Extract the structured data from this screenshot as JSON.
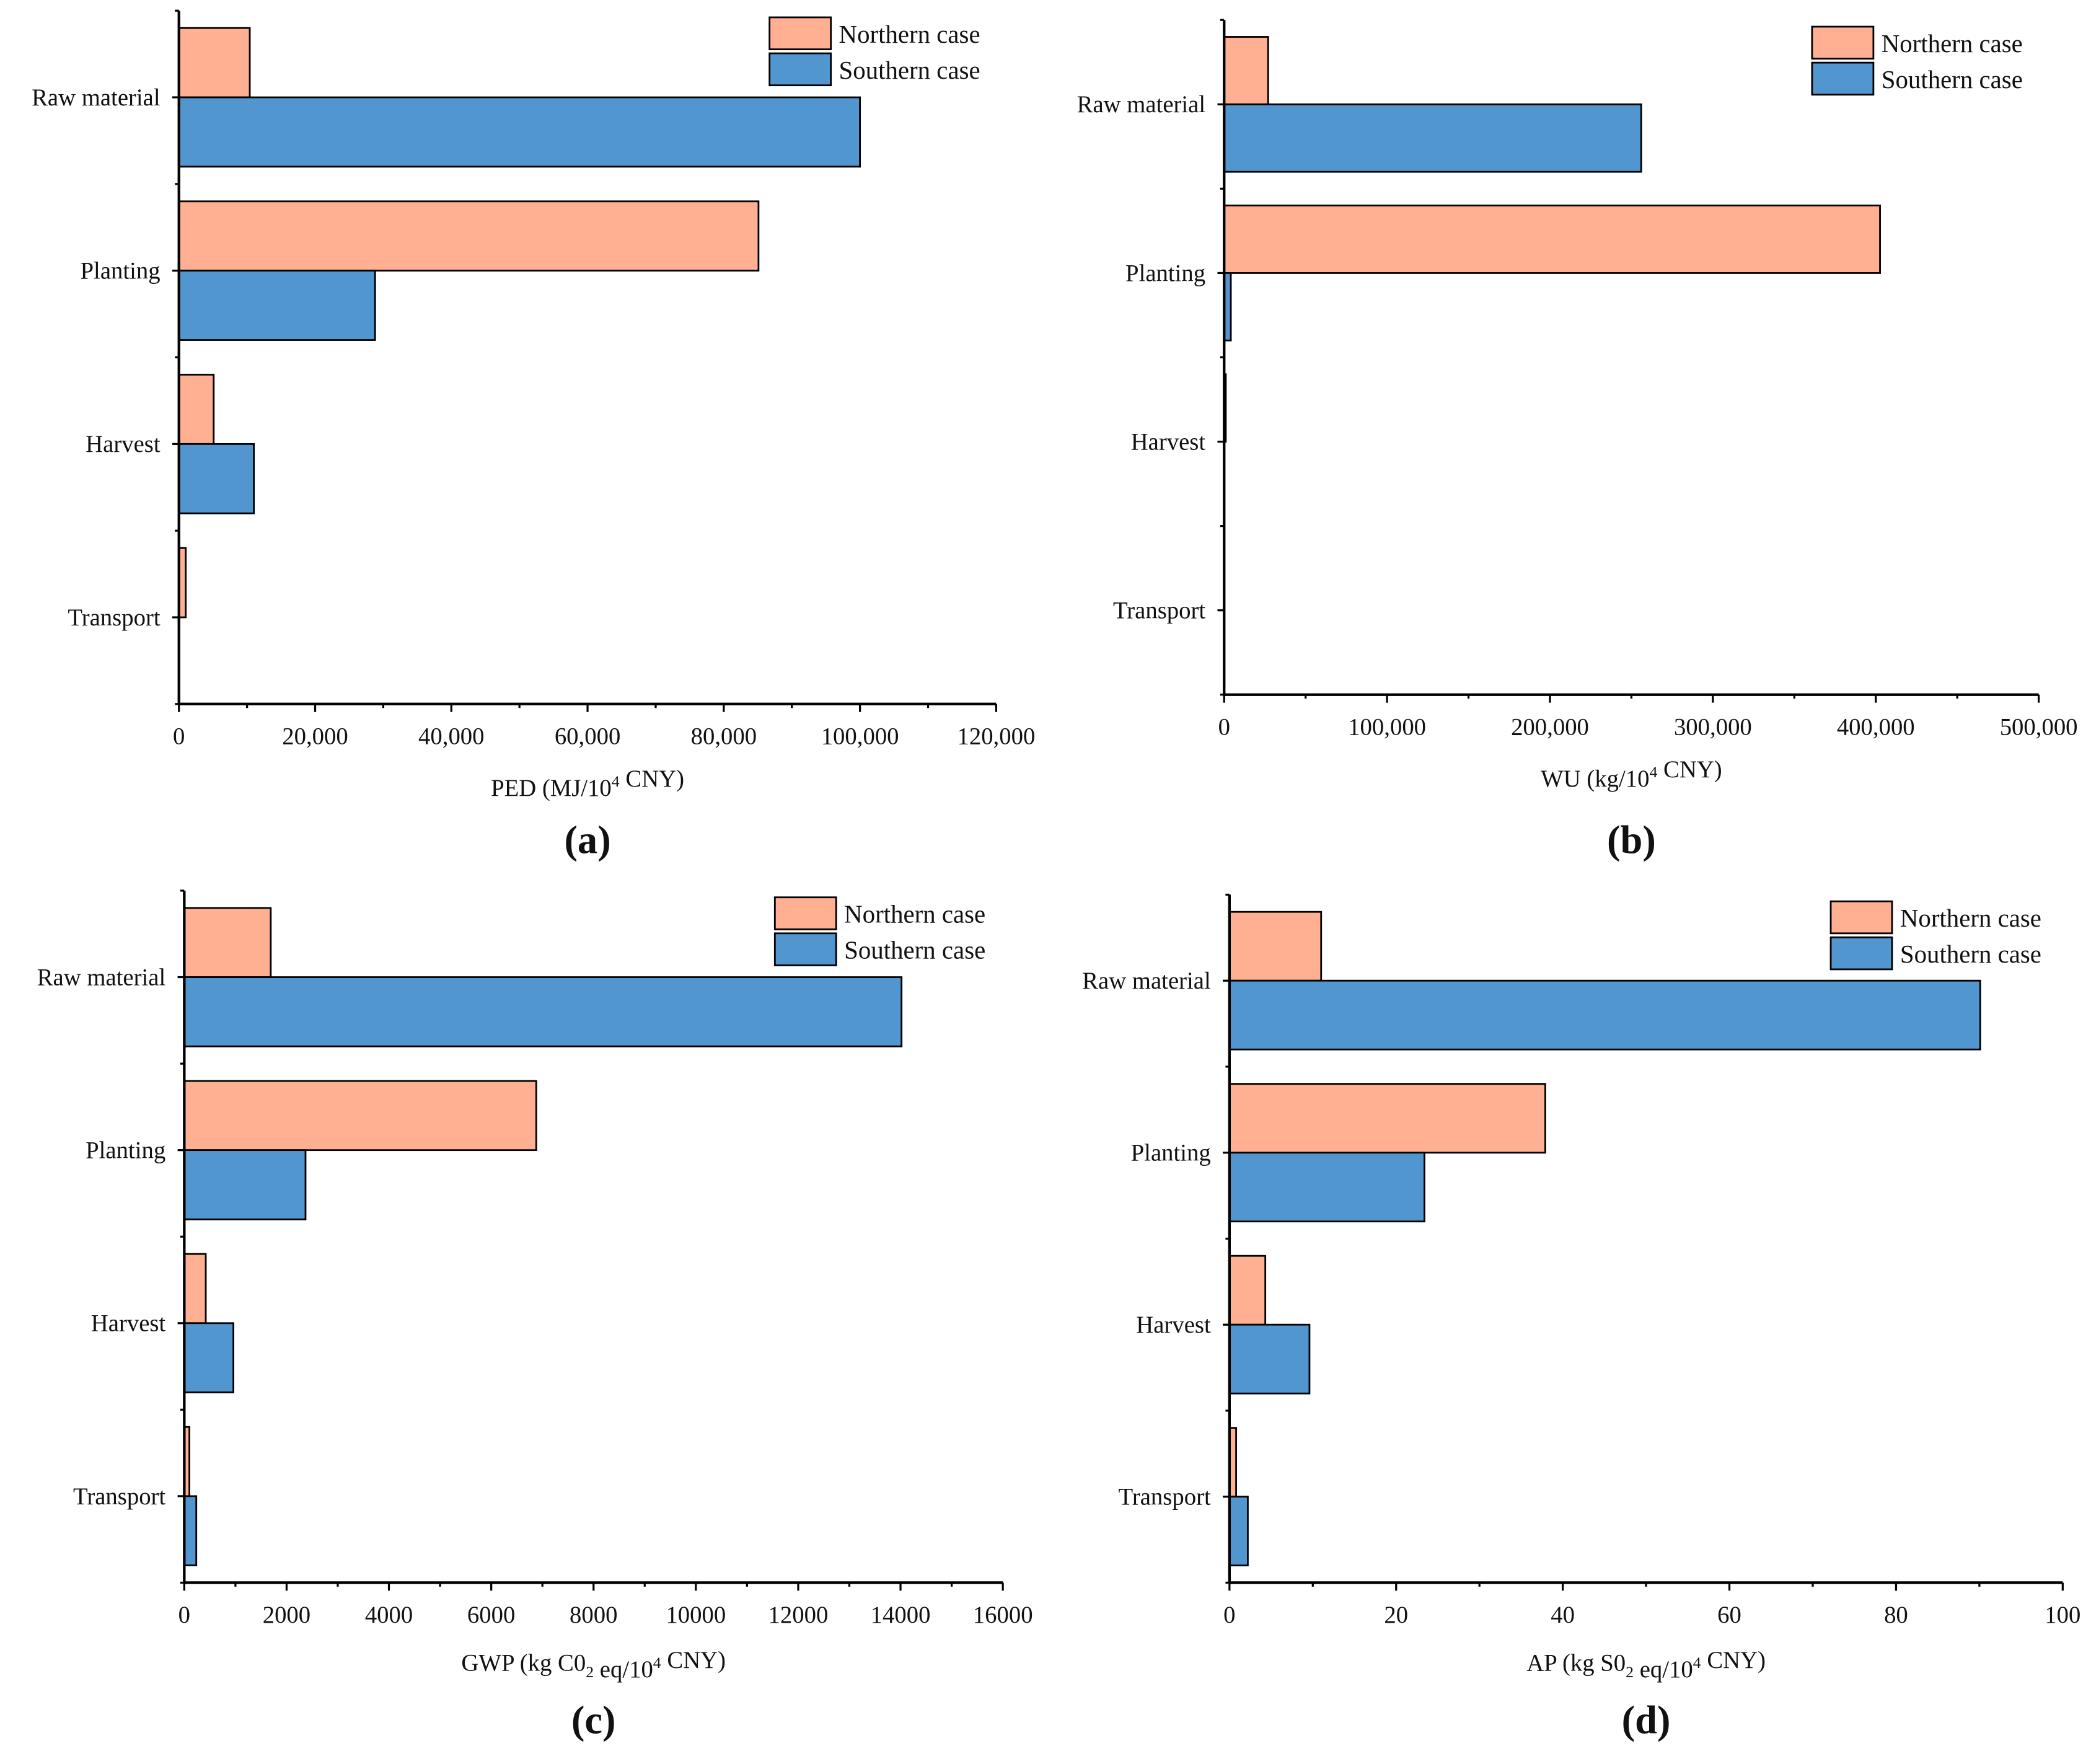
{
  "colors": {
    "northern": "#FFB092",
    "southern": "#5296CF",
    "stroke": "#000000"
  },
  "chart_data": [
    {
      "type": "bar",
      "orientation": "horizontal",
      "panel_label": "(a)",
      "categories": [
        "Raw material",
        "Planting",
        "Harvest",
        "Transport"
      ],
      "series": [
        {
          "name": "Northern case",
          "values": [
            10400,
            85100,
            5100,
            1000
          ]
        },
        {
          "name": "Southern case",
          "values": [
            100000,
            28800,
            11000,
            0
          ]
        }
      ],
      "xlabel": [
        {
          "t": "PED (MJ/10"
        },
        {
          "t": "4",
          "s": "sup"
        },
        {
          "t": " CNY)"
        }
      ],
      "xlim": [
        0,
        120000
      ],
      "xticks": [
        "0",
        "20,000",
        "40,000",
        "60,000",
        "80,000",
        "100,000",
        "120,000"
      ],
      "legend": "top-right"
    },
    {
      "type": "bar",
      "orientation": "horizontal",
      "panel_label": "(b)",
      "categories": [
        "Raw material",
        "Planting",
        "Harvest",
        "Transport"
      ],
      "series": [
        {
          "name": "Northern case",
          "values": [
            27000,
            402600,
            1000,
            0
          ]
        },
        {
          "name": "Southern case",
          "values": [
            256000,
            4100,
            0,
            0
          ]
        }
      ],
      "xlabel": [
        {
          "t": "WU (kg/10"
        },
        {
          "t": "4",
          "s": "sup"
        },
        {
          "t": " CNY)"
        }
      ],
      "xlim": [
        0,
        500000
      ],
      "xticks": [
        "0",
        "100,000",
        "200,000",
        "300,000",
        "400,000",
        "500,000"
      ],
      "legend": "top-right"
    },
    {
      "type": "bar",
      "orientation": "horizontal",
      "panel_label": "(c)",
      "categories": [
        "Raw material",
        "Planting",
        "Harvest",
        "Transport"
      ],
      "series": [
        {
          "name": "Northern case",
          "values": [
            1690,
            6880,
            420,
            100
          ]
        },
        {
          "name": "Southern case",
          "values": [
            14020,
            2370,
            960,
            235
          ]
        }
      ],
      "xlabel": [
        {
          "t": "GWP (kg C0"
        },
        {
          "t": "2",
          "s": "sub"
        },
        {
          "t": " eq/10"
        },
        {
          "t": "4",
          "s": "sup"
        },
        {
          "t": " CNY)"
        }
      ],
      "xlim": [
        0,
        16000
      ],
      "xticks": [
        "0",
        "2000",
        "4000",
        "6000",
        "8000",
        "10000",
        "12000",
        "14000",
        "16000"
      ],
      "legend": "top-right"
    },
    {
      "type": "bar",
      "orientation": "horizontal",
      "panel_label": "(d)",
      "categories": [
        "Raw material",
        "Planting",
        "Harvest",
        "Transport"
      ],
      "series": [
        {
          "name": "Northern case",
          "values": [
            11.0,
            37.9,
            4.3,
            0.8
          ]
        },
        {
          "name": "Southern case",
          "values": [
            90.1,
            23.4,
            9.6,
            2.2
          ]
        }
      ],
      "xlabel": [
        {
          "t": "AP (kg S0"
        },
        {
          "t": "2",
          "s": "sub"
        },
        {
          "t": " eq/10"
        },
        {
          "t": "4",
          "s": "sup"
        },
        {
          "t": " CNY)"
        }
      ],
      "xlim": [
        0,
        100
      ],
      "xticks": [
        "0",
        "20",
        "40",
        "60",
        "80",
        "100"
      ],
      "legend": "top-right"
    }
  ]
}
